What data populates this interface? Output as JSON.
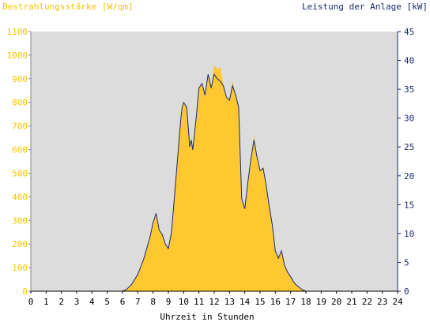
{
  "chart_data": {
    "type": "area",
    "title_left": "Bestrahlungsstärke [W/qm]",
    "title_right": "Leistung der Anlage [kW]",
    "xlabel": "Uhrzeit in Stunden",
    "x_ticks": [
      0,
      1,
      2,
      3,
      4,
      5,
      6,
      7,
      8,
      9,
      10,
      11,
      12,
      13,
      14,
      15,
      16,
      17,
      18,
      19,
      20,
      21,
      22,
      23,
      24
    ],
    "xlim": [
      0,
      24
    ],
    "y_left": {
      "label": "Bestrahlungsstärke [W/qm]",
      "lim": [
        0,
        1100
      ],
      "ticks": [
        0,
        100,
        200,
        300,
        400,
        500,
        600,
        700,
        800,
        900,
        1000,
        1100
      ]
    },
    "y_right": {
      "label": "Leistung der Anlage [kW]",
      "lim": [
        0,
        45
      ],
      "ticks": [
        0,
        5,
        10,
        15,
        20,
        25,
        30,
        35,
        40,
        45
      ]
    },
    "grid": false,
    "colors": {
      "irradiance": "#ffc830",
      "power": "#1a2a6c",
      "plot_bg": "#dcdcdc",
      "left_axis_text": "#f5c400",
      "right_axis_text": "#1a2a6c"
    },
    "series": [
      {
        "name": "Bestrahlungsstärke [W/qm]",
        "axis": "left",
        "style": "filled-area",
        "x": [
          0,
          6.0,
          6.3,
          6.6,
          7.0,
          7.4,
          7.8,
          8.0,
          8.2,
          8.4,
          8.6,
          8.8,
          9.0,
          9.2,
          9.4,
          9.6,
          9.8,
          9.9,
          10.0,
          10.2,
          10.4,
          10.5,
          10.6,
          10.8,
          11.0,
          11.2,
          11.4,
          11.6,
          11.8,
          12.0,
          12.2,
          12.4,
          12.6,
          12.8,
          13.0,
          13.2,
          13.4,
          13.6,
          13.8,
          14.0,
          14.2,
          14.4,
          14.6,
          14.8,
          15.0,
          15.2,
          15.4,
          15.6,
          15.8,
          16.0,
          16.2,
          16.4,
          16.6,
          16.8,
          17.0,
          17.2,
          17.4,
          17.6,
          17.8,
          18.0,
          18.2,
          18.4,
          18.6,
          18.8,
          19.0,
          24
        ],
        "y": [
          0,
          0,
          10,
          30,
          70,
          140,
          230,
          290,
          330,
          260,
          240,
          200,
          180,
          250,
          400,
          560,
          720,
          780,
          800,
          780,
          610,
          640,
          600,
          720,
          860,
          880,
          830,
          920,
          860,
          960,
          940,
          950,
          870,
          820,
          810,
          890,
          830,
          780,
          390,
          350,
          460,
          560,
          660,
          570,
          510,
          520,
          450,
          360,
          280,
          170,
          140,
          170,
          110,
          80,
          60,
          40,
          25,
          15,
          5,
          0,
          0,
          0,
          0,
          0,
          0,
          0
        ]
      },
      {
        "name": "Leistung der Anlage [kW]",
        "axis": "right",
        "style": "line",
        "x": [
          0,
          6.0,
          6.3,
          6.6,
          7.0,
          7.4,
          7.8,
          8.0,
          8.2,
          8.4,
          8.6,
          8.8,
          9.0,
          9.2,
          9.4,
          9.6,
          9.8,
          9.9,
          10.0,
          10.2,
          10.4,
          10.5,
          10.6,
          10.8,
          11.0,
          11.2,
          11.4,
          11.6,
          11.8,
          12.0,
          12.2,
          12.4,
          12.6,
          12.8,
          13.0,
          13.2,
          13.4,
          13.6,
          13.8,
          14.0,
          14.2,
          14.4,
          14.6,
          14.8,
          15.0,
          15.2,
          15.4,
          15.6,
          15.8,
          16.0,
          16.2,
          16.4,
          16.6,
          16.8,
          17.0,
          17.2,
          17.4,
          17.6,
          17.8,
          18.0,
          18.2,
          18.4,
          18.6,
          18.8,
          19.0,
          24
        ],
        "y": [
          0,
          0,
          0.4,
          1.2,
          2.9,
          5.7,
          9.4,
          11.9,
          13.5,
          10.6,
          9.8,
          8.2,
          7.4,
          10.2,
          16.4,
          22.9,
          29.5,
          31.9,
          32.7,
          31.9,
          25.0,
          26.2,
          24.5,
          29.5,
          35.2,
          36.0,
          34.0,
          37.6,
          35.2,
          37.6,
          36.8,
          36.4,
          35.6,
          33.6,
          33.1,
          35.6,
          34.0,
          31.9,
          16.0,
          14.3,
          18.8,
          22.9,
          26.2,
          23.3,
          20.9,
          21.3,
          18.4,
          14.7,
          11.5,
          7.0,
          5.7,
          7.0,
          4.5,
          3.3,
          2.5,
          1.6,
          1.0,
          0.6,
          0.2,
          0,
          0,
          0,
          0,
          0,
          0,
          0
        ]
      }
    ]
  }
}
